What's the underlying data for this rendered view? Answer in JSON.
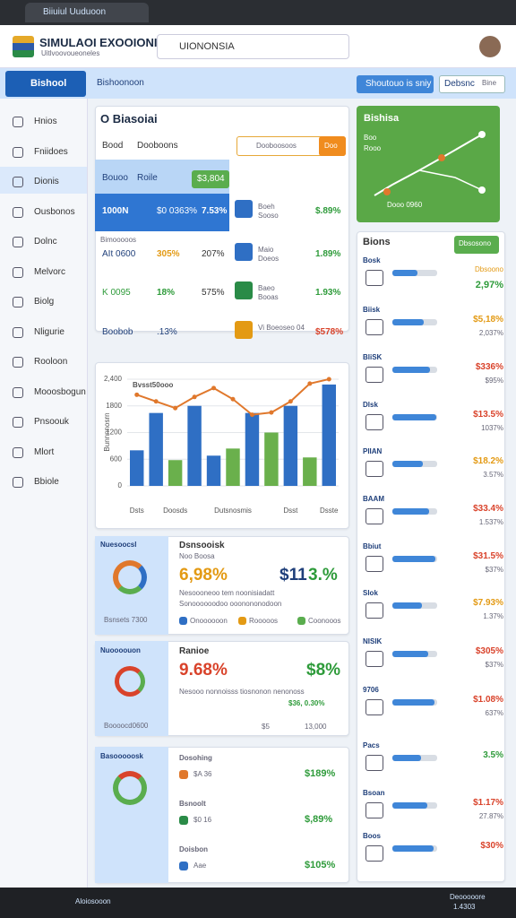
{
  "browser": {
    "tab_title": "Biiuiul Uuduoon"
  },
  "header": {
    "title": "SIMULAOI EXOOIONI",
    "subtitle": "Uitlvoovoueoneles",
    "search": "UIONONSIA"
  },
  "nav": {
    "tabs": [
      "Bishool",
      "Bishoonoon"
    ],
    "buttons": [
      "Shoutouo is sniy",
      "Debsnc",
      "Bine"
    ]
  },
  "sidebar": {
    "items": [
      "Hnios",
      "Fniidoes",
      "Dionis",
      "Ousbonos",
      "Dolnc",
      "Melvorc",
      "Biolg",
      "Nligurie",
      "Rooloon",
      "Mooosbogun",
      "Pnsoouk",
      "Mlort",
      "Bbiole"
    ]
  },
  "summary": {
    "title": "O Biasoiai",
    "filter": "Bood",
    "filter2": "Dooboons",
    "select": "Dooboosoos",
    "button": "Doo",
    "header_row": [
      "Bouoo",
      "Roile",
      "$3,804"
    ],
    "rows": [
      [
        "1000N",
        "$0 0363%",
        "7.53%"
      ],
      [
        "AIt 0600",
        "305%",
        "207%"
      ],
      [
        "K 0095",
        "18%",
        "575%"
      ],
      [
        "Boobob",
        ".13%",
        ""
      ]
    ],
    "row_label": "Bimooooos",
    "side": [
      [
        "Boeh",
        "Sooso",
        "$.89%"
      ],
      [
        "Maio",
        "Doeos",
        "1.89%"
      ],
      [
        "Baeo",
        "Booas",
        "1.93%"
      ],
      [
        "Vi Boeoseo 04",
        "",
        "$578%"
      ]
    ]
  },
  "green_card": {
    "title": "Bishisa",
    "labels": [
      "Boo",
      "Rooo",
      "Dooo 0960"
    ]
  },
  "main_chart": {
    "type": "bar",
    "title": "Bvsst50ooo",
    "y_label": "Bunnnnosrn",
    "categories": [
      "Dsts",
      null,
      "Doosds",
      null,
      null,
      "Dutsnosmis",
      null,
      null,
      "Dsst",
      null,
      "Dsste"
    ],
    "series": [
      {
        "color": "#2f6fc4",
        "values": [
          800,
          1640,
          null,
          1800,
          680,
          null,
          1640,
          null,
          1800,
          null,
          2280
        ]
      },
      {
        "color": "#6ab04c",
        "values": [
          null,
          null,
          580,
          null,
          null,
          840,
          null,
          1200,
          null,
          640,
          null
        ]
      },
      {
        "type": "line",
        "color": "#e0782c",
        "values": [
          2050,
          1900,
          1750,
          2000,
          2200,
          1950,
          1600,
          1650,
          1900,
          2300,
          2400
        ]
      }
    ],
    "ylim": [
      0,
      2500
    ],
    "yticks": [
      0,
      600,
      1200,
      1800,
      {
        "value": 2400,
        "label": "2,400"
      }
    ]
  },
  "list": {
    "title": "Bions",
    "button": "Dbsosono",
    "rows": [
      [
        "Bosk",
        "Dbsoono",
        "2,97%"
      ],
      [
        "Biisk",
        "$5,18%",
        "2,037%"
      ],
      [
        "BliSK",
        "$336%",
        "$95%"
      ],
      [
        "Dlsk",
        "$13.5%",
        "1037%"
      ],
      [
        "PIIAN",
        "$18.2%",
        "3.57%"
      ],
      [
        "BAAM",
        "$33.4%",
        "1.537%"
      ],
      [
        "Bbiut",
        "$31.5%",
        "$37%"
      ],
      [
        "Slok",
        "$7.93%",
        "1.37%"
      ],
      [
        "NISIK",
        "$305%",
        "$37%"
      ],
      [
        "9706",
        "$1.08%",
        "637%"
      ],
      [
        "Pacs",
        "3.5%",
        ""
      ],
      [
        "Bsoan",
        "$1.17%",
        "27.87%"
      ],
      [
        "Boos",
        "$30%",
        ""
      ]
    ]
  },
  "card_a": {
    "panel": "Nuesoocsl",
    "panel_button": "Bsnsets 7300",
    "title": "Dsnsooisk",
    "sub": "Noo Boosa",
    "big": [
      "6,98%",
      "$11",
      "3.%"
    ],
    "text": [
      "Nesoooneoo tem noonisiadatt",
      "Sonoooooodoo ooonononodoon"
    ],
    "legend": [
      "Onoooooon",
      "Rooooos",
      "Coonooos"
    ]
  },
  "card_b": {
    "panel": "Nuoooouon",
    "panel_button": "Boooocd0600",
    "title": "Ranioe",
    "big": [
      "9.68%",
      "$8%"
    ],
    "text": "Nesooo nonnoisss tiosnonon nenonoss",
    "value": "$36, 0.30%",
    "chip": "$5",
    "amount": "13,000"
  },
  "card_c": {
    "panel": "Basooooosk",
    "rows": [
      [
        "Dosohing",
        "$A 36",
        "$189%"
      ],
      [
        "Bsnoolt",
        "$0 16",
        "$,89%"
      ],
      [
        "Doisbon",
        "Aae",
        "$105%"
      ]
    ]
  },
  "taskbar": {
    "app": "Aloiosooon",
    "clock": [
      "Deooooore",
      "1.4303"
    ]
  }
}
